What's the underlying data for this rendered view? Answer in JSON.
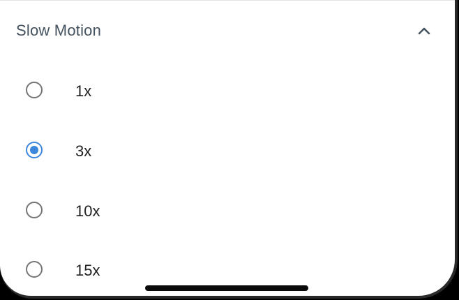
{
  "section": {
    "title": "Slow Motion",
    "toggle_icon": "chevron-up-icon",
    "expanded": true
  },
  "options": [
    {
      "label": "1x",
      "selected": false
    },
    {
      "label": "3x",
      "selected": true
    },
    {
      "label": "10x",
      "selected": false
    },
    {
      "label": "15x",
      "selected": false
    }
  ],
  "colors": {
    "accent": "#3d87dc",
    "title_text": "#44525f",
    "option_text": "#1f1f1f",
    "radio_unselected": "#757575"
  }
}
